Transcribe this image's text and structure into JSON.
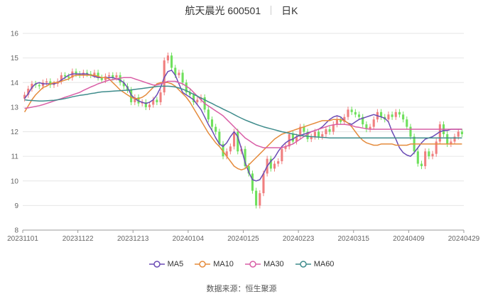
{
  "header": {
    "stock_name": "航天晨光 600501",
    "period": "日K"
  },
  "footer": {
    "source_label": "数据来源：",
    "source_value": "恒生聚源"
  },
  "colors": {
    "up": "#f07f7f",
    "down": "#6fe05d",
    "MA5": "#6b4bb5",
    "MA10": "#e58b3c",
    "MA30": "#d95ea6",
    "MA60": "#3f8c8c"
  },
  "chart_data": {
    "type": "candlestick",
    "title": "航天晨光 600501",
    "xlabel": "",
    "ylabel": "",
    "ylim": [
      8,
      16
    ],
    "yticks": [
      8,
      9,
      10,
      11,
      12,
      13,
      14,
      15,
      16
    ],
    "grid": true,
    "legend_placement": "bottom",
    "dates": [
      "2023-11-01",
      "2023-11-02",
      "2023-11-03",
      "2023-11-06",
      "2023-11-07",
      "2023-11-08",
      "2023-11-09",
      "2023-11-10",
      "2023-11-13",
      "2023-11-14",
      "2023-11-15",
      "2023-11-16",
      "2023-11-17",
      "2023-11-20",
      "2023-11-21",
      "2023-11-22",
      "2023-11-23",
      "2023-11-24",
      "2023-11-27",
      "2023-11-28",
      "2023-11-29",
      "2023-11-30",
      "2023-12-01",
      "2023-12-04",
      "2023-12-05",
      "2023-12-06",
      "2023-12-07",
      "2023-12-08",
      "2023-12-11",
      "2023-12-12",
      "2023-12-13",
      "2023-12-14",
      "2023-12-15",
      "2023-12-18",
      "2023-12-19",
      "2023-12-20",
      "2023-12-21",
      "2023-12-22",
      "2023-12-25",
      "2023-12-26",
      "2023-12-27",
      "2023-12-28",
      "2023-12-29",
      "2024-01-02",
      "2024-01-03",
      "2024-01-04",
      "2024-01-05",
      "2024-01-08",
      "2024-01-09",
      "2024-01-10",
      "2024-01-11",
      "2024-01-12",
      "2024-01-15",
      "2024-01-16",
      "2024-01-17",
      "2024-01-18",
      "2024-01-19",
      "2024-01-22",
      "2024-01-23",
      "2024-01-24",
      "2024-01-25",
      "2024-01-26",
      "2024-01-29",
      "2024-01-30",
      "2024-01-31",
      "2024-02-01",
      "2024-02-02",
      "2024-02-05",
      "2024-02-06",
      "2024-02-07",
      "2024-02-08",
      "2024-02-19",
      "2024-02-20",
      "2024-02-21",
      "2024-02-22",
      "2024-02-23",
      "2024-02-26",
      "2024-02-27",
      "2024-02-28",
      "2024-02-29",
      "2024-03-01",
      "2024-03-04",
      "2024-03-05",
      "2024-03-06",
      "2024-03-07",
      "2024-03-08",
      "2024-03-11",
      "2024-03-12",
      "2024-03-13",
      "2024-03-14",
      "2024-03-15",
      "2024-03-18",
      "2024-03-19",
      "2024-03-20",
      "2024-03-21",
      "2024-03-22",
      "2024-03-25",
      "2024-03-26",
      "2024-03-27",
      "2024-03-28",
      "2024-03-29",
      "2024-04-01",
      "2024-04-02",
      "2024-04-03",
      "2024-04-08",
      "2024-04-09",
      "2024-04-10",
      "2024-04-11",
      "2024-04-12",
      "2024-04-15",
      "2024-04-16",
      "2024-04-17",
      "2024-04-18",
      "2024-04-19",
      "2024-04-22",
      "2024-04-23",
      "2024-04-24",
      "2024-04-25",
      "2024-04-26",
      "2024-04-29"
    ],
    "x_tick_labels": [
      "20231101",
      "20231122",
      "20231213",
      "20240104",
      "20240125",
      "20240223",
      "20240315",
      "20240409",
      "20240429"
    ],
    "closes": [
      13.5,
      13.75,
      13.95,
      13.9,
      13.85,
      14.0,
      14.05,
      13.9,
      13.95,
      14.05,
      14.3,
      14.25,
      14.2,
      14.45,
      14.35,
      14.3,
      14.4,
      14.35,
      14.3,
      14.4,
      14.2,
      14.1,
      14.25,
      14.3,
      14.2,
      14.3,
      14.0,
      13.85,
      13.7,
      13.2,
      13.4,
      13.15,
      13.2,
      13.0,
      13.1,
      13.3,
      13.2,
      13.6,
      14.9,
      15.1,
      14.6,
      14.3,
      14.4,
      14.0,
      13.6,
      13.5,
      13.2,
      13.3,
      13.4,
      12.9,
      12.5,
      12.2,
      12.0,
      11.5,
      11.0,
      11.2,
      11.4,
      12.0,
      11.2,
      11.3,
      10.6,
      10.3,
      9.6,
      9.0,
      9.5,
      10.3,
      10.9,
      10.5,
      10.7,
      10.8,
      11.3,
      11.4,
      11.9,
      11.6,
      11.8,
      12.2,
      12.0,
      11.7,
      11.8,
      12.0,
      11.8,
      11.9,
      12.1,
      12.0,
      12.3,
      12.5,
      12.4,
      12.6,
      12.9,
      12.8,
      12.7,
      12.6,
      12.3,
      12.1,
      12.2,
      12.5,
      12.8,
      12.6,
      12.5,
      12.7,
      12.6,
      12.8,
      12.7,
      12.5,
      12.2,
      11.8,
      11.2,
      10.7,
      10.6,
      11.2,
      11.0,
      11.1,
      11.6,
      12.3,
      11.9,
      11.5,
      11.6,
      11.8,
      12.0,
      11.9
    ],
    "series": [
      {
        "name": "MA5",
        "values": [
          13.35,
          13.55,
          13.8,
          13.95,
          14.0,
          13.95,
          13.95,
          13.95,
          13.95,
          14.0,
          14.1,
          14.2,
          14.3,
          14.35,
          14.35,
          14.35,
          14.35,
          14.35,
          14.3,
          14.25,
          14.2,
          14.2,
          14.2,
          14.2,
          14.2,
          14.15,
          14.1,
          14.0,
          13.8,
          13.5,
          13.35,
          13.25,
          13.2,
          13.15,
          13.2,
          13.3,
          13.5,
          13.8,
          14.2,
          14.45,
          14.5,
          14.3,
          13.95,
          13.6,
          13.5,
          13.4,
          13.3,
          13.1,
          12.9,
          12.6,
          12.3,
          12.05,
          11.75,
          11.5,
          11.4,
          11.55,
          11.8,
          12.0,
          11.8,
          11.3,
          10.75,
          10.35,
          10.05,
          10.0,
          10.05,
          10.3,
          10.6,
          10.8,
          10.95,
          11.2,
          11.4,
          11.55,
          11.65,
          11.7,
          11.8,
          11.85,
          11.9,
          11.95,
          12.0,
          12.05,
          12.1,
          12.2,
          12.35,
          12.5,
          12.6,
          12.65,
          12.6,
          12.45,
          12.35,
          12.3,
          12.4,
          12.5,
          12.55,
          12.6,
          12.65,
          12.7,
          12.65,
          12.6,
          12.55,
          12.4,
          12.0,
          11.7,
          11.35,
          11.15,
          11.05,
          11.0,
          11.15,
          11.35,
          11.55,
          11.7,
          11.75,
          11.8,
          11.9,
          12.0,
          12.05,
          12.05,
          12.1,
          12.1,
          12.1,
          12.1
        ]
      },
      {
        "name": "MA10",
        "values": [
          12.8,
          13.05,
          13.3,
          13.5,
          13.65,
          13.8,
          13.85,
          13.95,
          14.0,
          14.0,
          14.05,
          14.1,
          14.15,
          14.25,
          14.3,
          14.3,
          14.3,
          14.3,
          14.3,
          14.3,
          14.25,
          14.2,
          14.2,
          14.15,
          14.0,
          13.85,
          13.7,
          13.6,
          13.5,
          13.4,
          13.35,
          13.35,
          13.4,
          13.5,
          13.65,
          13.8,
          13.95,
          14.0,
          14.0,
          14.0,
          13.95,
          13.85,
          13.7,
          13.55,
          13.4,
          13.2,
          12.95,
          12.7,
          12.45,
          12.2,
          11.95,
          11.75,
          11.55,
          11.4,
          11.2,
          11.0,
          10.8,
          10.6,
          10.5,
          10.45,
          10.5,
          10.65,
          10.8,
          10.95,
          11.1,
          11.25,
          11.4,
          11.55,
          11.7,
          11.8,
          11.9,
          11.95,
          12.0,
          12.05,
          12.1,
          12.15,
          12.2,
          12.25,
          12.3,
          12.35,
          12.4,
          12.45,
          12.45,
          12.45,
          12.5,
          12.5,
          12.5,
          12.45,
          12.35,
          12.2,
          12.0,
          11.8,
          11.65,
          11.55,
          11.5,
          11.45,
          11.45,
          11.5,
          11.5,
          11.5,
          11.5,
          11.45,
          11.45,
          11.45,
          11.45,
          11.5,
          11.5,
          11.5,
          11.5,
          11.5,
          11.5,
          11.5,
          11.5,
          11.5,
          11.5,
          11.5,
          11.5,
          11.5,
          11.5,
          11.5
        ]
      },
      {
        "name": "MA30",
        "values": [
          12.95,
          12.97,
          13.0,
          13.03,
          13.06,
          13.1,
          13.15,
          13.2,
          13.25,
          13.3,
          13.35,
          13.4,
          13.45,
          13.5,
          13.55,
          13.6,
          13.68,
          13.75,
          13.82,
          13.88,
          13.95,
          14.0,
          14.05,
          14.1,
          14.12,
          14.15,
          14.18,
          14.2,
          14.2,
          14.2,
          14.15,
          14.1,
          14.05,
          14.0,
          13.95,
          13.9,
          13.9,
          13.95,
          14.0,
          14.05,
          14.05,
          14.05,
          14.0,
          13.95,
          13.85,
          13.75,
          13.6,
          13.45,
          13.3,
          13.15,
          13.05,
          12.95,
          12.85,
          12.75,
          12.65,
          12.5,
          12.35,
          12.2,
          12.05,
          11.9,
          11.75,
          11.65,
          11.55,
          11.45,
          11.4,
          11.35,
          11.35,
          11.35,
          11.35,
          11.35,
          11.35,
          11.4,
          11.45,
          11.5,
          11.6,
          11.7,
          11.8,
          11.9,
          12.0,
          12.05,
          12.1,
          12.15,
          12.2,
          12.25,
          12.28,
          12.3,
          12.3,
          12.3,
          12.28,
          12.25,
          12.2,
          12.18,
          12.15,
          12.12,
          12.1,
          12.1,
          12.1,
          12.1,
          12.1,
          12.1,
          12.1,
          12.1,
          12.1,
          12.1,
          12.1,
          12.1,
          12.1,
          12.1,
          12.1,
          12.1,
          12.1,
          12.1,
          12.1,
          12.1,
          12.1,
          12.1,
          12.1,
          12.1,
          12.1,
          12.1
        ]
      },
      {
        "name": "MA60",
        "values": [
          13.3,
          13.28,
          13.27,
          13.26,
          13.25,
          13.25,
          13.26,
          13.27,
          13.28,
          13.3,
          13.32,
          13.35,
          13.38,
          13.42,
          13.45,
          13.48,
          13.5,
          13.52,
          13.55,
          13.57,
          13.6,
          13.62,
          13.63,
          13.64,
          13.65,
          13.66,
          13.67,
          13.68,
          13.69,
          13.7,
          13.72,
          13.74,
          13.76,
          13.78,
          13.8,
          13.82,
          13.84,
          13.85,
          13.85,
          13.85,
          13.84,
          13.82,
          13.78,
          13.73,
          13.67,
          13.6,
          13.52,
          13.45,
          13.37,
          13.3,
          13.22,
          13.15,
          13.07,
          13.0,
          12.92,
          12.85,
          12.78,
          12.7,
          12.62,
          12.55,
          12.48,
          12.42,
          12.36,
          12.3,
          12.25,
          12.2,
          12.16,
          12.12,
          12.08,
          12.04,
          12.0,
          11.97,
          11.94,
          11.91,
          11.88,
          11.85,
          11.83,
          11.81,
          11.8,
          11.79,
          11.78,
          11.77,
          11.76,
          11.75,
          11.75,
          11.75,
          11.75,
          11.75,
          11.75,
          11.75,
          11.75,
          11.75,
          11.75,
          11.75,
          11.75,
          11.75,
          11.75,
          11.75,
          11.75,
          11.75,
          11.75,
          11.75,
          11.75,
          11.75,
          11.75,
          11.75,
          11.75,
          11.75,
          11.75,
          11.75,
          11.75,
          11.75,
          11.75,
          11.75,
          11.75,
          11.75,
          11.75,
          11.75,
          11.75,
          11.75
        ]
      }
    ]
  }
}
